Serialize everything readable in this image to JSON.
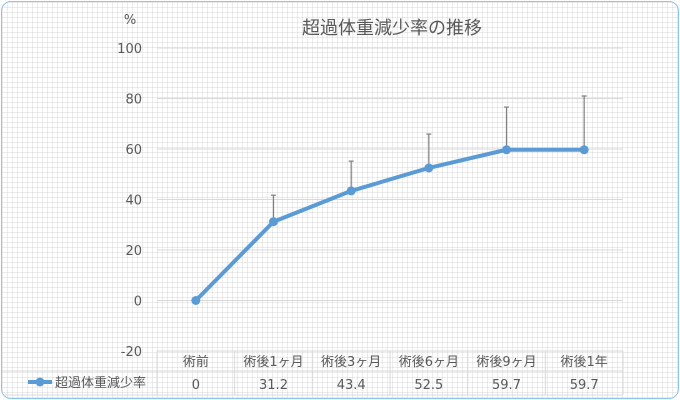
{
  "chart_data": {
    "type": "line",
    "title": "超過体重減少率の推移",
    "ylabel": "%",
    "ylim": [
      -20,
      100
    ],
    "yticks": [
      -20,
      0,
      20,
      40,
      60,
      80,
      100
    ],
    "grid": true,
    "legend": "data-table-left",
    "categories": [
      "術前",
      "術後1ヶ月",
      "術後3ヶ月",
      "術後6ヶ月",
      "術後9ヶ月",
      "術後1年"
    ],
    "series": [
      {
        "name": "超過体重減少率",
        "values": [
          0,
          31.2,
          43.4,
          52.5,
          59.7,
          59.7
        ],
        "error_plus": [
          0,
          10.5,
          11.8,
          13.4,
          16.9,
          21.3
        ],
        "color": "#5b9bd5"
      }
    ],
    "table_values": [
      "0",
      "31.2",
      "43.4",
      "52.5",
      "59.7",
      "59.7"
    ]
  }
}
